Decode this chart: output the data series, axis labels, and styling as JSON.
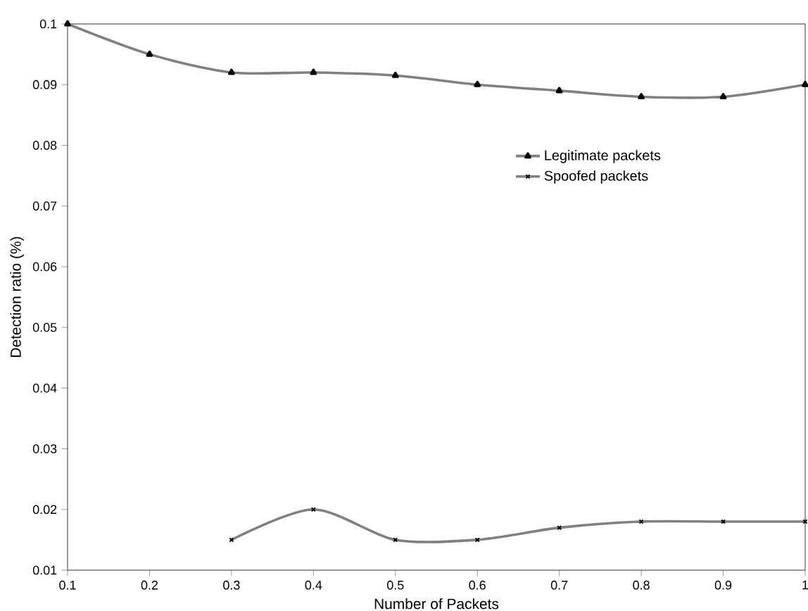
{
  "chart_data": {
    "type": "line",
    "xlabel": "Number  of Packets",
    "ylabel": "Detection ratio (%)",
    "xlim": [
      0.1,
      1
    ],
    "ylim": [
      0.01,
      0.1
    ],
    "xticks": [
      0.1,
      0.2,
      0.3,
      0.4,
      0.5,
      0.6,
      0.7,
      0.8,
      0.9,
      1
    ],
    "yticks": [
      0.01,
      0.02,
      0.03,
      0.04,
      0.05,
      0.06,
      0.07,
      0.08,
      0.09,
      0.1
    ],
    "legend": "right",
    "grid": false,
    "series": [
      {
        "name": "Legitimate packets",
        "color": "#808080",
        "marker": "triangle",
        "x": [
          0.1,
          0.2,
          0.3,
          0.4,
          0.5,
          0.6,
          0.7,
          0.8,
          0.9,
          1
        ],
        "values": [
          0.1,
          0.095,
          0.092,
          0.092,
          0.0915,
          0.09,
          0.089,
          0.088,
          0.088,
          0.09
        ]
      },
      {
        "name": "Spoofed packets",
        "color": "#808080",
        "marker": "cross",
        "x": [
          0.3,
          0.4,
          0.5,
          0.6,
          0.7,
          0.8,
          0.9,
          1
        ],
        "values": [
          0.015,
          0.02,
          0.015,
          0.015,
          0.017,
          0.018,
          0.018,
          0.018
        ]
      }
    ]
  }
}
